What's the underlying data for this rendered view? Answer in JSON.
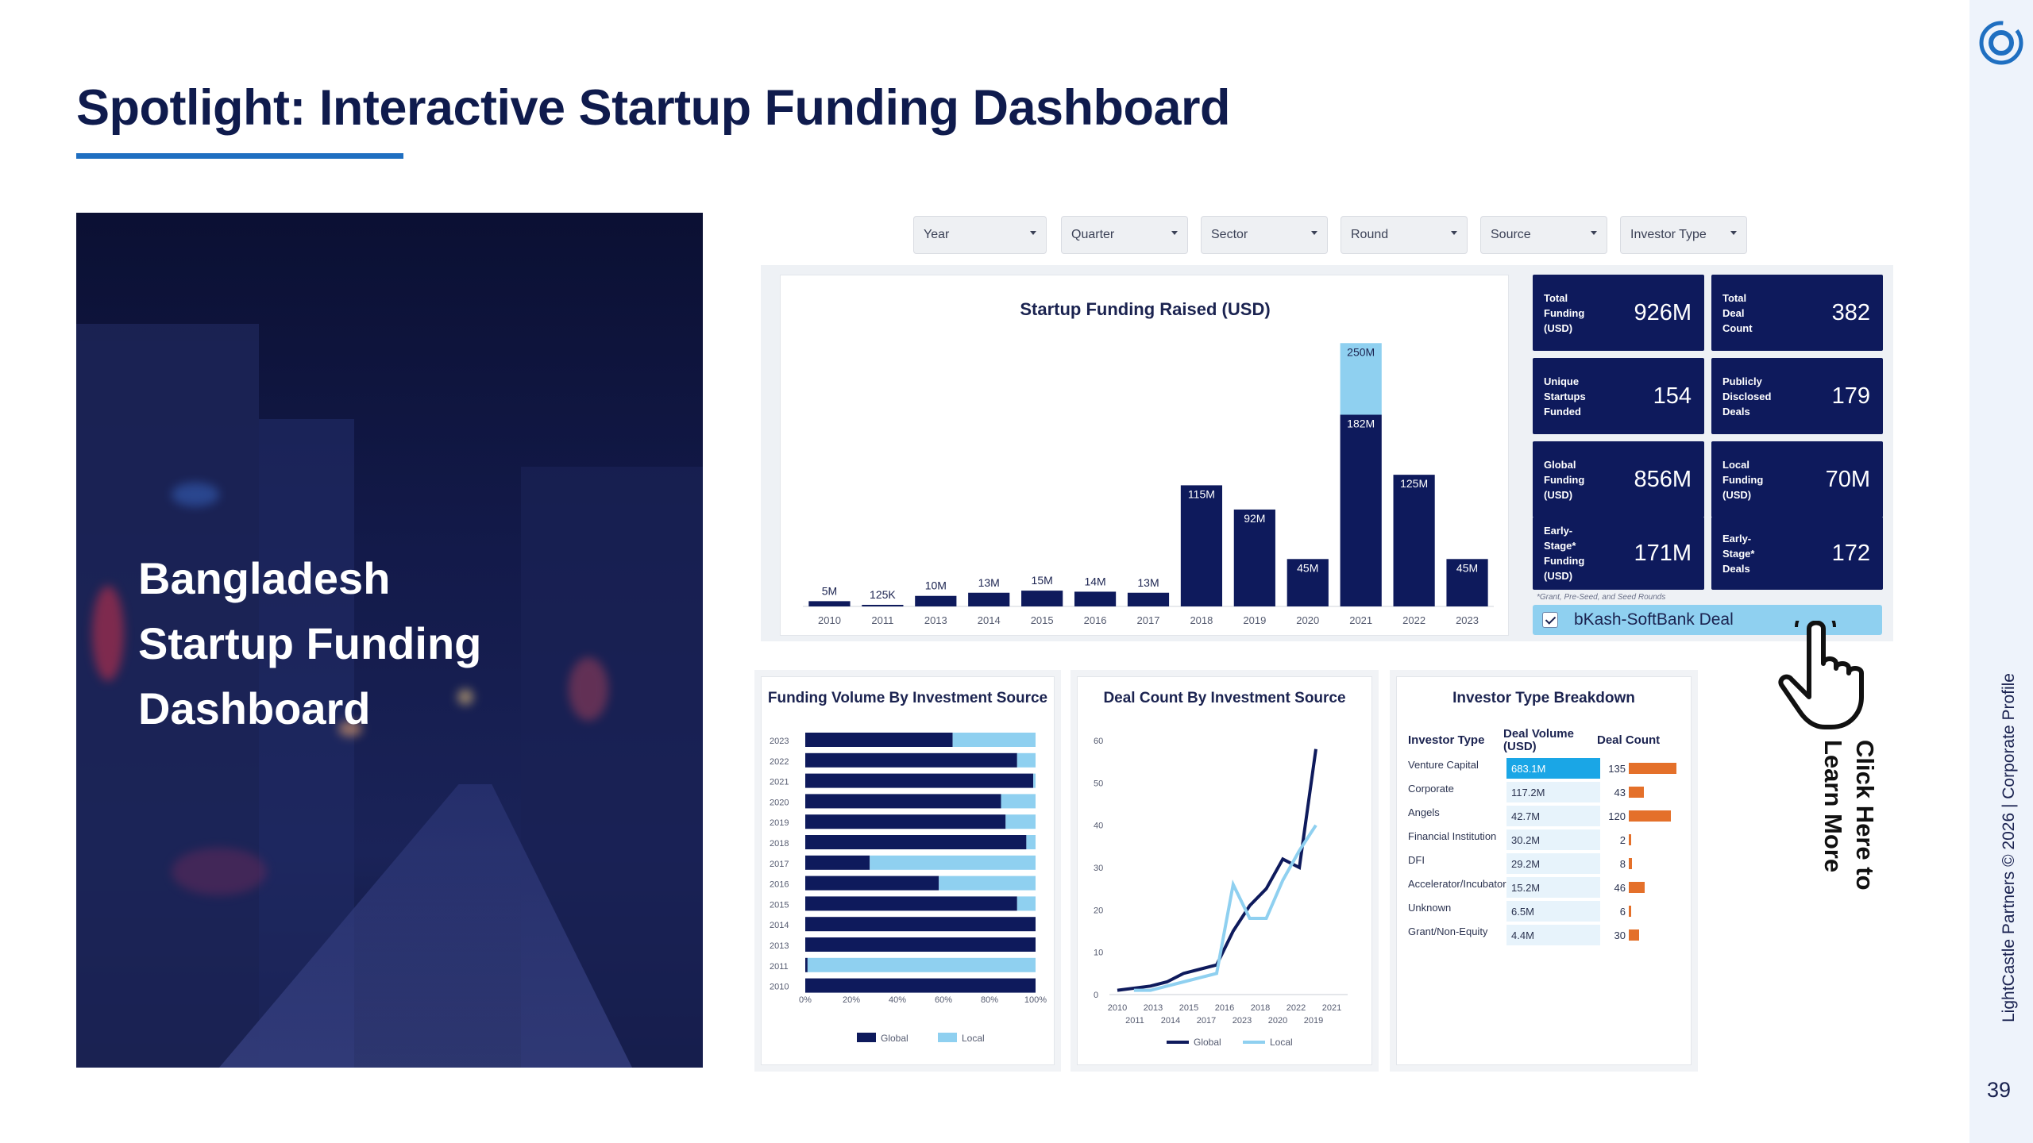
{
  "page": {
    "title": "Spotlight: Interactive Startup Funding Dashboard",
    "footer": "LightCastle Partners © 2026 | Corporate Profile",
    "page_number": "39",
    "colors": {
      "title": "#0f1b4d",
      "underline": "#1f6fc1",
      "navy": "#0e1a5c",
      "light_blue": "#8fd0f0",
      "orange": "#e4702a",
      "rail": "#eef3fb"
    }
  },
  "hero": {
    "title": "Bangladesh\nStartup Funding\nDashboard"
  },
  "filters": [
    "Year",
    "Quarter",
    "Sector",
    "Round",
    "Source",
    "Investor Type"
  ],
  "kpis": [
    {
      "label": "Total\nFunding\n(USD)",
      "value": "926M"
    },
    {
      "label": "Total\nDeal\nCount",
      "value": "382"
    },
    {
      "label": "Unique\nStartups\nFunded",
      "value": "154"
    },
    {
      "label": "Publicly\nDisclosed\nDeals",
      "value": "179"
    },
    {
      "label": "Global\nFunding\n(USD)",
      "value": "856M"
    },
    {
      "label": "Local\nFunding\n(USD)",
      "value": "70M"
    },
    {
      "label": "Early-\nStage*\nFunding\n(USD)",
      "value": "171M"
    },
    {
      "label": "Early-\nStage*\nDeals",
      "value": "172"
    }
  ],
  "kpi_note": "*Grant, Pre-Seed, and Seed Rounds",
  "deal_toggle": {
    "label": "bKash-SoftBank Deal",
    "checked": true
  },
  "cta": {
    "text": "Click Here to\nLearn More",
    "icon": "pointing-hand-icon"
  },
  "chart_data": [
    {
      "type": "bar",
      "title": "Startup Funding Raised (USD)",
      "categories": [
        "2010",
        "2011",
        "2013",
        "2014",
        "2015",
        "2016",
        "2017",
        "2018",
        "2019",
        "2020",
        "2021",
        "2022",
        "2023"
      ],
      "series": [
        {
          "values": [
            5,
            0.125,
            10,
            13,
            15,
            14,
            13,
            115,
            92,
            45,
            182,
            125,
            45
          ],
          "color": "#0e1a5c"
        },
        {
          "values": [
            0,
            0,
            0,
            0,
            0,
            0,
            0,
            0,
            0,
            0,
            68,
            0,
            0
          ],
          "color": "#8fd0f0"
        }
      ],
      "data_labels": [
        "5M",
        "125K",
        "10M",
        "13M",
        "15M",
        "14M",
        "13M",
        "115M",
        "92M",
        "45M",
        "182M",
        "125M",
        "45M"
      ],
      "stack_total_label": {
        "category": "2021",
        "label": "250M"
      },
      "ylim": [
        0,
        260
      ]
    },
    {
      "type": "bar",
      "title": "Funding Volume By Investment Source",
      "orientation": "horizontal",
      "categories": [
        "2023",
        "2022",
        "2021",
        "2020",
        "2019",
        "2018",
        "2017",
        "2016",
        "2015",
        "2014",
        "2013",
        "2011",
        "2010"
      ],
      "series": [
        {
          "name": "Global",
          "values": [
            64,
            92,
            99,
            85,
            87,
            96,
            28,
            58,
            92,
            100,
            100,
            1,
            100
          ]
        },
        {
          "name": "Local",
          "values": [
            36,
            8,
            1,
            15,
            13,
            4,
            72,
            42,
            8,
            0,
            0,
            99,
            0
          ]
        }
      ],
      "xticks": [
        "0%",
        "20%",
        "40%",
        "60%",
        "80%",
        "100%"
      ]
    },
    {
      "type": "line",
      "title": "Deal Count By Investment Source",
      "x": [
        "2010",
        "2011",
        "2013",
        "2014",
        "2015",
        "2016",
        "2017",
        "2018",
        "2019",
        "2020",
        "2021",
        "2022",
        "2023"
      ],
      "series": [
        {
          "name": "Global",
          "values": [
            1,
            null,
            2,
            3,
            5,
            6,
            7,
            15,
            21,
            25,
            32,
            30,
            58
          ]
        },
        {
          "name": "Local",
          "values": [
            null,
            1,
            1,
            2,
            3,
            4,
            5,
            26,
            18,
            18,
            27,
            34,
            40
          ]
        }
      ],
      "yticks": [
        "0",
        "10",
        "20",
        "30",
        "40",
        "50",
        "60"
      ],
      "xticks_row1": [
        "2010",
        "2013",
        "2015",
        "2016",
        "2018",
        "2022",
        "2021"
      ],
      "xticks_row2": [
        "2011",
        "2014",
        "2017",
        "2023",
        "2020",
        "2019"
      ],
      "ylim": [
        0,
        60
      ]
    },
    {
      "type": "table",
      "title": "Investor Type Breakdown",
      "columns": [
        "Investor Type",
        "Deal Volume (USD)",
        "Deal Count"
      ],
      "rows": [
        {
          "type": "Venture Capital",
          "volume": "683.1M",
          "count": 135
        },
        {
          "type": "Corporate",
          "volume": "117.2M",
          "count": 43
        },
        {
          "type": "Angels",
          "volume": "42.7M",
          "count": 120
        },
        {
          "type": "Financial Institution",
          "volume": "30.2M",
          "count": 2
        },
        {
          "type": "DFI",
          "volume": "29.2M",
          "count": 8
        },
        {
          "type": "Accelerator/Incubator",
          "volume": "15.2M",
          "count": 46
        },
        {
          "type": "Unknown",
          "volume": "6.5M",
          "count": 6
        },
        {
          "type": "Grant/Non-Equity",
          "volume": "4.4M",
          "count": 30
        }
      ]
    }
  ]
}
